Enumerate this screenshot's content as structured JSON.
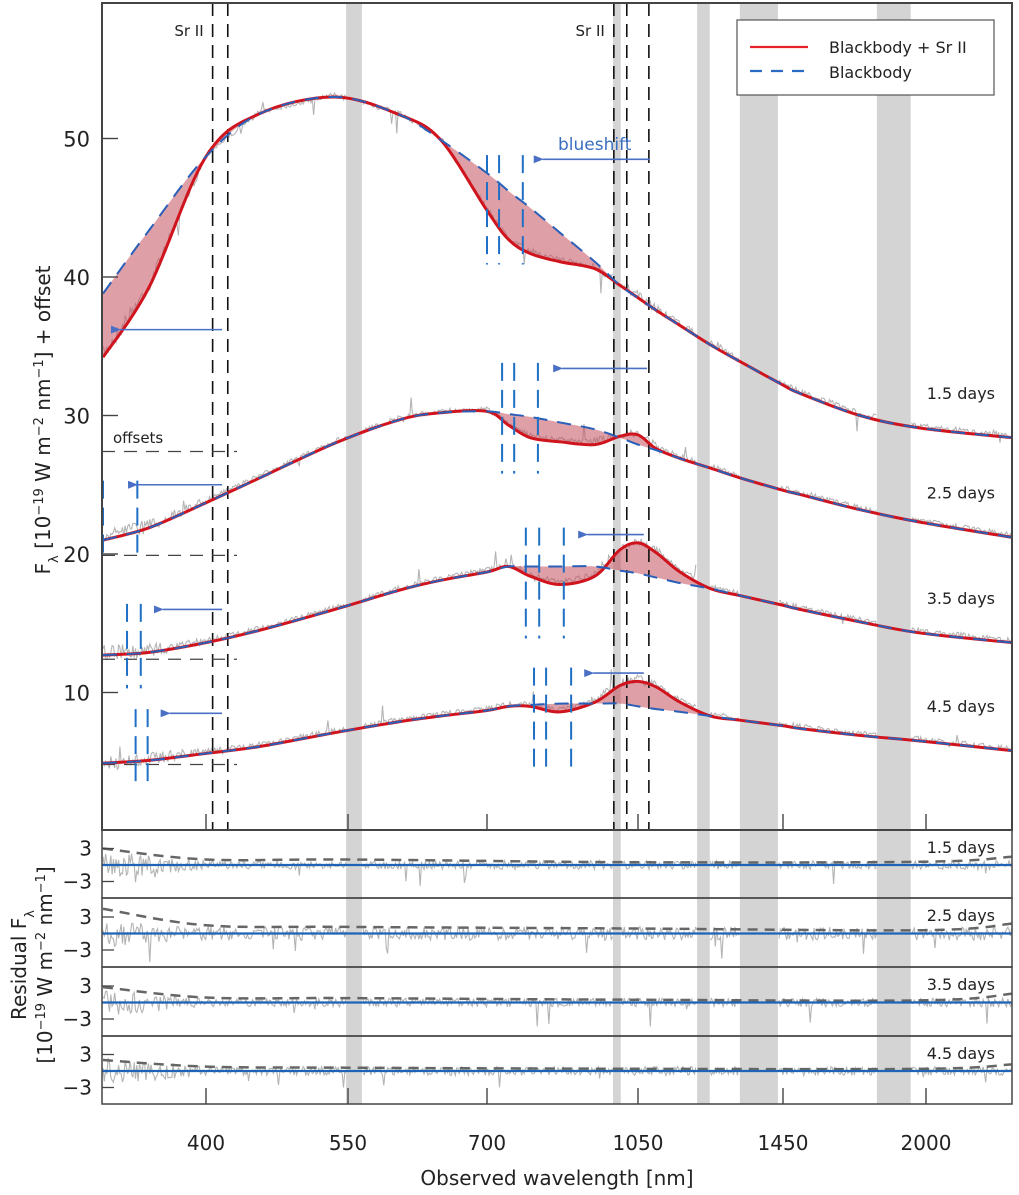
{
  "chart_data": {
    "type": "line",
    "xlabel": "Observed wavelength [nm]",
    "ylabel": "F_λ [10^−19 W m^−2 nm^−1] + offset",
    "residual_ylabel_line1": "Residual F_λ",
    "residual_ylabel_line2": "[10^−19 W m^−2 nm^−1]",
    "xlim": [
      340,
      2450
    ],
    "x_ticks": [
      400,
      550,
      700,
      1050,
      1450,
      2000
    ],
    "x_scale": "non-linear (tick-spaced)",
    "ylim": [
      0,
      60
    ],
    "y_ticks": [
      10,
      20,
      30,
      40,
      50
    ],
    "residual_ylim": [
      -6,
      6.2
    ],
    "residual_y_ticks": [
      3,
      -3
    ],
    "grid": false,
    "legend": {
      "placement": "top-right",
      "entries": [
        {
          "label": "Blackbody + Sr II",
          "color": "#e8202a",
          "style": "solid"
        },
        {
          "label": "Blackbody",
          "color": "#2a6cc4",
          "style": "dashed"
        }
      ]
    },
    "colors": {
      "data": "#b4b4b4",
      "fill": "#c4505c",
      "model_bb_sr": "#d0141e",
      "model_bb": "#2a5fb8",
      "marker": "#1f6fc4",
      "arrow": "#4a6fc4",
      "band": "#d4d4d4",
      "residual_zero": "#1f63b8",
      "residual_mean": "#666666",
      "nir_model": "#2e9a40"
    },
    "telluric_bands": [
      [
        548,
        565
      ],
      [
        992,
        1010
      ],
      [
        1213,
        1248
      ],
      [
        1331,
        1436
      ],
      [
        1811,
        1941
      ]
    ],
    "sr_lines": {
      "label": "Sr II",
      "wavelengths": [
        407,
        423,
        994,
        1024,
        1080
      ]
    },
    "annotation_blueshift": "blueshift",
    "annotation_offsets": "offsets",
    "wavelength": [
      340,
      367,
      400,
      457,
      536,
      606,
      650,
      700,
      750,
      800,
      869,
      950,
      1008,
      1050,
      1100,
      1166,
      1250,
      1331,
      1450,
      1515,
      1746,
      1977,
      2450
    ],
    "epochs": [
      {
        "label": "1.5 days",
        "offset": 27.4,
        "blackbody": [
          38.8,
          43.4,
          48.7,
          51.8,
          53.0,
          51.7,
          49.9,
          47.5,
          46.2,
          45.0,
          43.2,
          41.1,
          39.4,
          38.5,
          37.6,
          36.5,
          35.1,
          33.9,
          32.2,
          31.6,
          30.0,
          29.1,
          28.4
        ],
        "blackbody_sr": [
          34.2,
          39.3,
          48.7,
          51.8,
          53.0,
          51.7,
          49.9,
          44.8,
          42.7,
          41.7,
          41.1,
          40.6,
          39.4,
          38.5,
          37.6,
          36.5,
          35.1,
          33.9,
          32.2,
          31.6,
          30.0,
          29.1,
          28.4
        ],
        "ir_markers": [
          700,
          728,
          783
        ],
        "ir_marker_flux": [
          40.9,
          48.8
        ],
        "ir_arrow": {
          "from": 1083,
          "to": 806,
          "flux": 48.5
        },
        "uv_markers": [],
        "uv_marker_flux": [],
        "uv_arrow": {
          "from": 417,
          "to": 344,
          "flux": 36.2
        },
        "residual_mean": [
          3.0,
          1.0,
          1.0,
          0.5,
          0.6,
          1.5
        ]
      },
      {
        "label": "2.5 days",
        "offset": 19.9,
        "blackbody": [
          21.0,
          21.9,
          23.7,
          25.5,
          28.0,
          29.7,
          30.2,
          30.3,
          30.1,
          29.9,
          29.5,
          29.0,
          28.4,
          27.9,
          27.5,
          26.9,
          26.2,
          25.5,
          24.6,
          24.3,
          23.2,
          22.3,
          21.2
        ],
        "blackbody_sr": [
          21.0,
          21.9,
          23.7,
          25.5,
          28.0,
          29.7,
          30.2,
          30.3,
          29.3,
          28.4,
          28.1,
          27.9,
          28.5,
          28.6,
          27.6,
          26.9,
          26.2,
          25.5,
          24.6,
          24.3,
          23.2,
          22.3,
          21.2
        ],
        "ir_markers": [
          735,
          763,
          818
        ],
        "ir_marker_flux": [
          25.8,
          33.8
        ],
        "ir_arrow": {
          "from": 1075,
          "to": 851,
          "flux": 33.4
        },
        "uv_markers": [
          340,
          360
        ],
        "uv_marker_flux": [
          19.6,
          25.3
        ],
        "uv_arrow": {
          "from": 417,
          "to": 354,
          "flux": 25.0
        },
        "residual_mean": [
          4.5,
          1.5,
          1.2,
          0.9,
          0.6,
          1.8
        ]
      },
      {
        "label": "3.5 days",
        "offset": 12.4,
        "blackbody": [
          12.7,
          12.9,
          13.6,
          14.5,
          16.0,
          17.4,
          18.1,
          18.7,
          19.1,
          19.1,
          19.1,
          19.1,
          18.8,
          18.6,
          18.3,
          17.9,
          17.5,
          17.0,
          16.3,
          16.0,
          15.1,
          14.3,
          13.6
        ],
        "blackbody_sr": [
          12.7,
          12.9,
          13.6,
          14.5,
          16.0,
          17.4,
          18.1,
          18.7,
          19.1,
          18.4,
          17.8,
          18.4,
          20.3,
          20.8,
          20.1,
          18.7,
          17.5,
          17.0,
          16.3,
          16.0,
          15.1,
          14.3,
          13.6
        ],
        "ir_markers": [
          790,
          821,
          878
        ],
        "ir_marker_flux": [
          13.9,
          21.9
        ],
        "ir_arrow": {
          "from": 1066,
          "to": 909,
          "flux": 21.4
        },
        "uv_markers": [
          354,
          362
        ],
        "uv_marker_flux": [
          10.3,
          16.4
        ],
        "uv_arrow": {
          "from": 417,
          "to": 369,
          "flux": 16.0
        },
        "residual_mean": [
          2.8,
          0.9,
          0.8,
          0.5,
          0.4,
          1.6
        ]
      },
      {
        "label": "4.5 days",
        "offset": 4.8,
        "blackbody": [
          4.9,
          5.1,
          5.6,
          6.1,
          7.1,
          7.9,
          8.3,
          8.7,
          9.0,
          9.1,
          9.2,
          9.2,
          9.2,
          9.0,
          8.8,
          8.6,
          8.3,
          8.0,
          7.6,
          7.4,
          6.9,
          6.5,
          5.8
        ],
        "blackbody_sr": [
          4.9,
          5.1,
          5.6,
          6.1,
          7.1,
          7.9,
          8.3,
          8.7,
          9.0,
          9.0,
          8.6,
          9.3,
          10.5,
          10.8,
          10.4,
          9.3,
          8.3,
          8.0,
          7.6,
          7.4,
          6.9,
          6.5,
          5.8
        ],
        "ir_markers": [
          809,
          837,
          895
        ],
        "ir_marker_flux": [
          4.0,
          11.8
        ],
        "ir_arrow": {
          "from": 1066,
          "to": 923,
          "flux": 11.4
        },
        "uv_markers": [
          359,
          366
        ],
        "uv_marker_flux": [
          3.0,
          8.8
        ],
        "uv_arrow": {
          "from": 417,
          "to": 373,
          "flux": 8.5
        },
        "residual_mean": [
          2.0,
          0.8,
          0.6,
          0.4,
          0.4,
          1.2
        ]
      }
    ],
    "residual_mean_wavelength": [
      340,
      400,
      550,
      1050,
      2000,
      2450
    ]
  }
}
